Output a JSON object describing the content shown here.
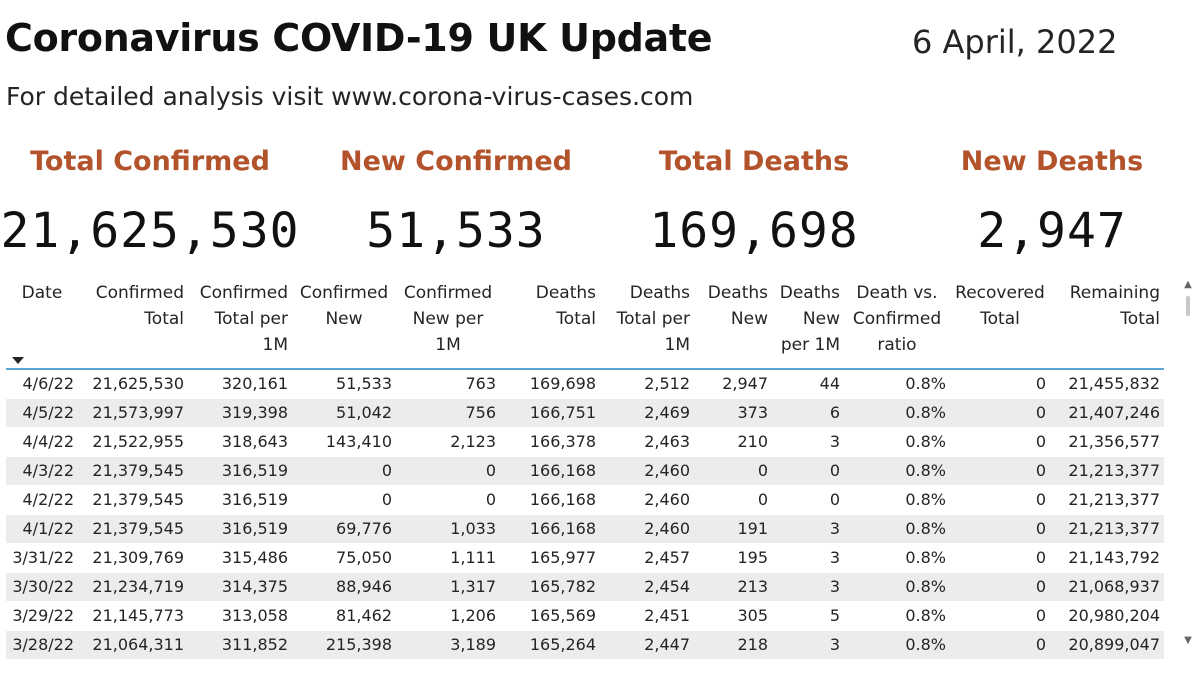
{
  "header": {
    "title": "Coronavirus COVID-19 UK Update",
    "date": "6 April, 2022",
    "subtitle": "For detailed analysis visit www.corona-virus-cases.com"
  },
  "cards": [
    {
      "label": "Total Confirmed",
      "value": "21,625,530"
    },
    {
      "label": "New Confirmed",
      "value": "51,533"
    },
    {
      "label": "Total Deaths",
      "value": "169,698"
    },
    {
      "label": "New Deaths",
      "value": "2,947"
    }
  ],
  "colors": {
    "accent": "#b3532b",
    "header_underline": "#5aa7d6",
    "row_stripe": "#ececec"
  },
  "table": {
    "sort_indicator": "sort-descending-icon",
    "columns": [
      [
        "Date"
      ],
      [
        "Confirmed",
        "Total"
      ],
      [
        "Confirmed",
        "Total per",
        "1M"
      ],
      [
        "Confirmed",
        "New"
      ],
      [
        "Confirmed",
        "New per",
        "1M"
      ],
      [
        "Deaths",
        "Total"
      ],
      [
        "Deaths",
        "Total per",
        "1M"
      ],
      [
        "Deaths",
        "New"
      ],
      [
        "Deaths",
        "New",
        "per 1M"
      ],
      [
        "Death vs.",
        "Confirmed",
        "ratio"
      ],
      [
        "Recovered",
        "Total"
      ],
      [
        "Remaining",
        "Total"
      ]
    ],
    "rows": [
      [
        "4/6/22",
        "21,625,530",
        "320,161",
        "51,533",
        "763",
        "169,698",
        "2,512",
        "2,947",
        "44",
        "0.8%",
        "0",
        "21,455,832"
      ],
      [
        "4/5/22",
        "21,573,997",
        "319,398",
        "51,042",
        "756",
        "166,751",
        "2,469",
        "373",
        "6",
        "0.8%",
        "0",
        "21,407,246"
      ],
      [
        "4/4/22",
        "21,522,955",
        "318,643",
        "143,410",
        "2,123",
        "166,378",
        "2,463",
        "210",
        "3",
        "0.8%",
        "0",
        "21,356,577"
      ],
      [
        "4/3/22",
        "21,379,545",
        "316,519",
        "0",
        "0",
        "166,168",
        "2,460",
        "0",
        "0",
        "0.8%",
        "0",
        "21,213,377"
      ],
      [
        "4/2/22",
        "21,379,545",
        "316,519",
        "0",
        "0",
        "166,168",
        "2,460",
        "0",
        "0",
        "0.8%",
        "0",
        "21,213,377"
      ],
      [
        "4/1/22",
        "21,379,545",
        "316,519",
        "69,776",
        "1,033",
        "166,168",
        "2,460",
        "191",
        "3",
        "0.8%",
        "0",
        "21,213,377"
      ],
      [
        "3/31/22",
        "21,309,769",
        "315,486",
        "75,050",
        "1,111",
        "165,977",
        "2,457",
        "195",
        "3",
        "0.8%",
        "0",
        "21,143,792"
      ],
      [
        "3/30/22",
        "21,234,719",
        "314,375",
        "88,946",
        "1,317",
        "165,782",
        "2,454",
        "213",
        "3",
        "0.8%",
        "0",
        "21,068,937"
      ],
      [
        "3/29/22",
        "21,145,773",
        "313,058",
        "81,462",
        "1,206",
        "165,569",
        "2,451",
        "305",
        "5",
        "0.8%",
        "0",
        "20,980,204"
      ],
      [
        "3/28/22",
        "21,064,311",
        "311,852",
        "215,398",
        "3,189",
        "165,264",
        "2,447",
        "218",
        "3",
        "0.8%",
        "0",
        "20,899,047"
      ]
    ]
  },
  "scrollbar": {
    "up_icon": "▲",
    "down_icon": "▼"
  }
}
